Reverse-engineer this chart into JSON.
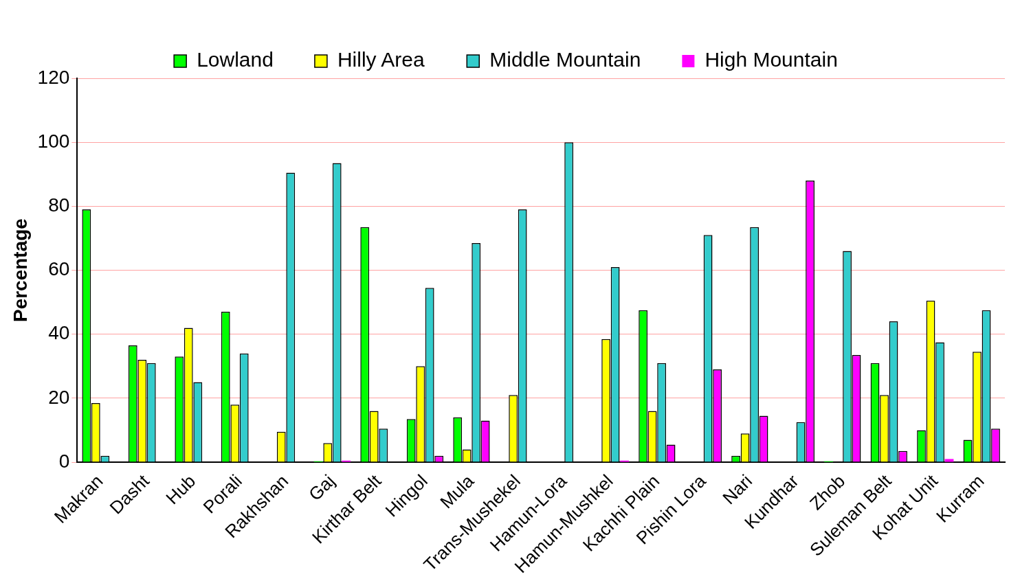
{
  "chart_data": {
    "type": "bar",
    "ylabel": "Percentage",
    "categories": [
      "Makran",
      "Dasht",
      "Hub",
      "Porali",
      "Rakhshan",
      "Gaj",
      "Kirthar Belt",
      "Hingol",
      "Mula",
      "Trans-Mushekel",
      "Hamun-Lora",
      "Hamun-Mushkel",
      "Kachhi Plain",
      "Pishin Lora",
      "Nari",
      "Kundhar",
      "Zhob",
      "Suleman Belt",
      "Kohat Unit",
      "Kurram"
    ],
    "series": [
      {
        "name": "Lowland",
        "color": "#00ff00",
        "values": [
          79,
          36.5,
          33,
          47,
          0,
          0.3,
          73.5,
          13.5,
          14,
          0,
          0,
          0,
          47.5,
          0,
          2,
          0,
          0.3,
          31,
          10,
          7
        ]
      },
      {
        "name": "Hilly Area",
        "color": "#ffff00",
        "values": [
          18.5,
          32,
          42,
          18,
          9.5,
          6,
          16,
          30,
          4,
          21,
          0,
          38.5,
          16,
          0,
          9,
          0,
          0,
          21,
          50.5,
          34.5
        ]
      },
      {
        "name": "Middle Mountain",
        "color": "#33cccc",
        "values": [
          2,
          31,
          25,
          34,
          90.5,
          93.5,
          10.5,
          54.5,
          68.5,
          79,
          100,
          61,
          31,
          71,
          73.5,
          12.5,
          66,
          44,
          37.5,
          47.5
        ]
      },
      {
        "name": "High Mountain",
        "color": "#ff00ff",
        "values": [
          0,
          0,
          0,
          0,
          0,
          0.5,
          0,
          2,
          13,
          0,
          0,
          0.5,
          5.5,
          29,
          14.5,
          88,
          33.5,
          3.5,
          1,
          10.5
        ]
      }
    ],
    "ylim": [
      0,
      120
    ],
    "yticks": [
      0,
      20,
      40,
      60,
      80,
      100,
      120
    ],
    "grid": "y",
    "legend": "top"
  }
}
